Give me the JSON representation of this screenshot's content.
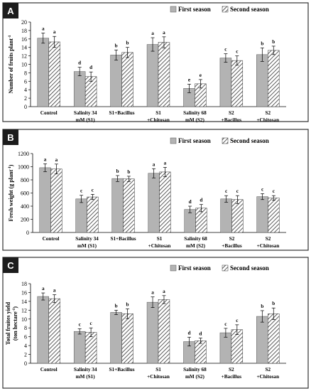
{
  "legend": {
    "first_season": "First season",
    "second_season": "Second season"
  },
  "colors": {
    "first_season_fill": "#b3b3b3",
    "second_season_hatch": "#333333"
  },
  "chart_data": [
    {
      "panel_label": "A",
      "type": "bar",
      "ylabel": "Number of fruits plant",
      "ylabel_superscript": "-1",
      "ylim": [
        0,
        20
      ],
      "yticks": [
        0,
        2,
        4,
        6,
        8,
        10,
        12,
        14,
        16,
        18,
        20
      ],
      "categories": [
        [
          "Control"
        ],
        [
          "Salinity 34",
          "mM (S1)"
        ],
        [
          "S1+Bacillus"
        ],
        [
          "S1",
          "+Chitosan"
        ],
        [
          "Salinity 68",
          "mM (S2)"
        ],
        [
          "S2",
          "+Bacillus"
        ],
        [
          "S2",
          "+Chitosan"
        ]
      ],
      "series": [
        {
          "name": "First season",
          "values": [
            16.2,
            8.3,
            12.2,
            14.7,
            4.3,
            11.5,
            12.3
          ],
          "errors": [
            1.2,
            1.0,
            1.2,
            1.6,
            1.0,
            1.0,
            1.6
          ],
          "letters": [
            "a",
            "d",
            "b",
            "a",
            "e",
            "c",
            "b"
          ]
        },
        {
          "name": "Second season",
          "values": [
            15.3,
            7.1,
            12.8,
            15.2,
            5.4,
            10.9,
            13.3
          ],
          "errors": [
            1.3,
            1.1,
            1.2,
            1.3,
            1.0,
            1.1,
            1.0
          ],
          "letters": [
            "a",
            "d",
            "b",
            "a",
            "e",
            "c",
            "b"
          ]
        }
      ],
      "grid": false,
      "legend_position": "top-right"
    },
    {
      "panel_label": "B",
      "type": "bar",
      "ylabel": "Fresh weight (g plant",
      "ylabel_superscript": "-1",
      "ylabel_suffix": ")",
      "ylim": [
        0,
        1200
      ],
      "yticks": [
        0,
        200,
        400,
        600,
        800,
        1000,
        1200
      ],
      "categories": [
        [
          "Control"
        ],
        [
          "Salinity 34",
          "mM (S1)"
        ],
        [
          "S1+Bacillus"
        ],
        [
          "S1",
          "+Chitosan"
        ],
        [
          "Salinity 68",
          "mM (S2)"
        ],
        [
          "S2",
          "+Bacillus"
        ],
        [
          "S2",
          "+Chitosan"
        ]
      ],
      "series": [
        {
          "name": "First season",
          "values": [
            985,
            510,
            820,
            900,
            350,
            510,
            545
          ],
          "errors": [
            60,
            55,
            45,
            70,
            50,
            50,
            45
          ],
          "letters": [
            "a",
            "c",
            "b",
            "a",
            "d",
            "c",
            "c"
          ]
        },
        {
          "name": "Second season",
          "values": [
            965,
            540,
            815,
            920,
            370,
            500,
            525
          ],
          "errors": [
            75,
            40,
            40,
            70,
            55,
            60,
            35
          ],
          "letters": [
            "a",
            "c",
            "b",
            "a",
            "d",
            "c",
            "c"
          ]
        }
      ],
      "grid": false,
      "legend_position": "top-right"
    },
    {
      "panel_label": "C",
      "type": "bar",
      "ylabel": "Total fruites yield",
      "ylabel2": "(ton hectare",
      "ylabel_superscript": "-1",
      "ylabel_suffix": ")",
      "ylim": [
        0,
        18
      ],
      "yticks": [
        0,
        2,
        4,
        6,
        8,
        10,
        12,
        14,
        16,
        18
      ],
      "categories": [
        [
          "Control"
        ],
        [
          "Salinity 34",
          "mM (S1)"
        ],
        [
          "S1+Bacillus"
        ],
        [
          "S1",
          "+Chitosan"
        ],
        [
          "Salinity 68",
          "mM (S2)"
        ],
        [
          "S2",
          "+Bacillus"
        ],
        [
          "S2",
          "+Chitosan"
        ]
      ],
      "series": [
        {
          "name": "First season",
          "values": [
            15.1,
            7.2,
            11.5,
            13.8,
            4.9,
            6.9,
            10.6
          ],
          "errors": [
            0.8,
            0.6,
            0.5,
            1.2,
            1.0,
            1.0,
            1.3
          ],
          "letters": [
            "a",
            "c",
            "b",
            "a",
            "d",
            "c",
            "b"
          ]
        },
        {
          "name": "Second season",
          "values": [
            14.6,
            7.0,
            11.2,
            14.4,
            5.1,
            7.6,
            11.2
          ],
          "errors": [
            0.9,
            1.0,
            1.1,
            0.9,
            0.6,
            1.1,
            1.3
          ],
          "letters": [
            "a",
            "c",
            "b",
            "a",
            "d",
            "c",
            "b"
          ]
        }
      ],
      "grid": false,
      "legend_position": "top-right"
    }
  ]
}
